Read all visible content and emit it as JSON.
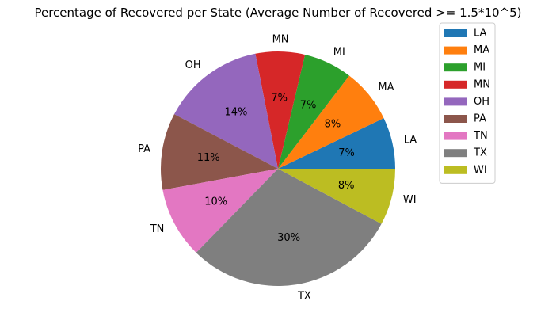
{
  "chart_data": {
    "type": "pie",
    "title": "Percentage of Recovered per State (Average Number of Recovered >= 1.5*10^5)",
    "slices": [
      {
        "label": "LA",
        "percent": 7.1,
        "percent_label": "7%",
        "color": "#1f77b4"
      },
      {
        "label": "MA",
        "percent": 7.5,
        "percent_label": "8%",
        "color": "#ff7f0e"
      },
      {
        "label": "MI",
        "percent": 6.7,
        "percent_label": "7%",
        "color": "#2ca02c"
      },
      {
        "label": "MN",
        "percent": 6.8,
        "percent_label": "7%",
        "color": "#d62728"
      },
      {
        "label": "OH",
        "percent": 14.2,
        "percent_label": "14%",
        "color": "#9467bd"
      },
      {
        "label": "PA",
        "percent": 10.6,
        "percent_label": "11%",
        "color": "#8c564b"
      },
      {
        "label": "TN",
        "percent": 9.8,
        "percent_label": "10%",
        "color": "#e377c2"
      },
      {
        "label": "TX",
        "percent": 29.5,
        "percent_label": "30%",
        "color": "#7f7f7f"
      },
      {
        "label": "WI",
        "percent": 7.8,
        "percent_label": "8%",
        "color": "#bcbd22"
      }
    ],
    "start_angle": 0,
    "direction": "counterclockwise",
    "legend_position": "top-right"
  }
}
